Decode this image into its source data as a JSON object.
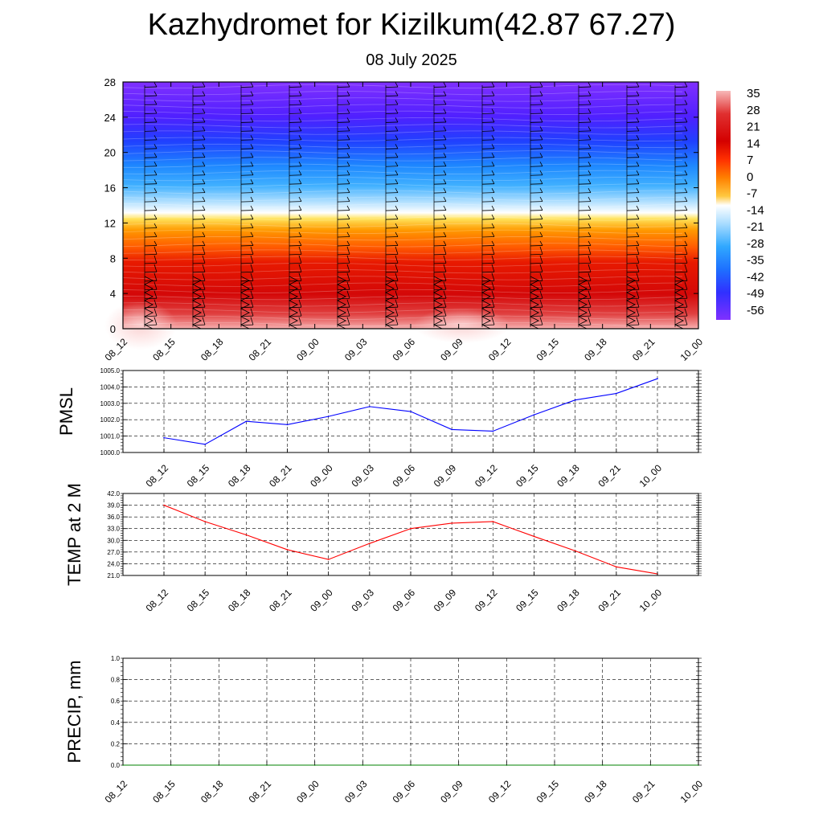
{
  "title": "Kazhydromet for Kizilkum(42.87 67.27)",
  "subtitle": "08 July 2025",
  "chart_data": [
    {
      "type": "heatmap",
      "x_ticks": [
        "08_12",
        "08_15",
        "08_18",
        "08_21",
        "09_00",
        "09_03",
        "09_06",
        "09_09",
        "09_12",
        "09_15",
        "09_18",
        "09_21",
        "10_00"
      ],
      "y_ticks": [
        0,
        4,
        8,
        12,
        16,
        20,
        24,
        28
      ],
      "ylim": [
        0,
        28
      ],
      "colorbar_labels": [
        "35",
        "28",
        "21",
        "14",
        "7",
        "0",
        "-7",
        "-14",
        "-21",
        "-28",
        "-35",
        "-42",
        "-49",
        "-56"
      ],
      "colorbar_colors": [
        "#f7b8b8",
        "#e83030",
        "#d40000",
        "#e81a00",
        "#ff5000",
        "#ff8000",
        "#ffb400",
        "#ffe060",
        "#ffffff",
        "#bfe6ff",
        "#50b8ff",
        "#1e8cff",
        "#2050ff",
        "#3030ff",
        "#6020ff",
        "#8030ff"
      ],
      "colormap_note": "temperature by height and time; ~12 km transition from warm to cold; wind barbs overlaid",
      "height_profile": [
        {
          "h": 0,
          "v": 35
        },
        {
          "h": 2,
          "v": 33
        },
        {
          "h": 4,
          "v": 30
        },
        {
          "h": 8,
          "v": 20
        },
        {
          "h": 12,
          "v": -8
        },
        {
          "h": 13,
          "v": -20
        },
        {
          "h": 16,
          "v": -35
        },
        {
          "h": 20,
          "v": -48
        },
        {
          "h": 24,
          "v": -55
        },
        {
          "h": 28,
          "v": -60
        }
      ]
    },
    {
      "type": "line",
      "ylabel": "PMSL",
      "x": [
        "08_12",
        "08_15",
        "08_18",
        "08_21",
        "09_00",
        "09_03",
        "09_06",
        "09_09",
        "09_12",
        "09_15",
        "09_18",
        "09_21",
        "10_00"
      ],
      "values": [
        1000.9,
        1000.5,
        1001.9,
        1001.7,
        1002.2,
        1002.8,
        1002.5,
        1001.4,
        1001.3,
        1002.3,
        1003.2,
        1003.6,
        1004.5
      ],
      "ylim": [
        1000.0,
        1005.0
      ],
      "y_ticks": [
        "1000.0",
        "1001.0",
        "1002.0",
        "1003.0",
        "1004.0",
        "1005.0"
      ],
      "color": "#0000ff",
      "grid": true
    },
    {
      "type": "line",
      "ylabel": "TEMP at 2 M",
      "x": [
        "08_12",
        "08_15",
        "08_18",
        "08_21",
        "09_00",
        "09_03",
        "09_06",
        "09_09",
        "09_12",
        "09_15",
        "09_18",
        "09_21",
        "10_00"
      ],
      "values": [
        39.0,
        34.8,
        31.4,
        27.6,
        25.1,
        29.2,
        33.0,
        34.4,
        34.8,
        31.0,
        27.3,
        23.2,
        21.4
      ],
      "ylim": [
        21.0,
        42.0
      ],
      "y_ticks": [
        "21.0",
        "24.0",
        "27.0",
        "30.0",
        "33.0",
        "36.0",
        "39.0",
        "42.0"
      ],
      "color": "#ff0000",
      "grid": true
    },
    {
      "type": "line",
      "ylabel": "PRECIP, mm",
      "x": [
        "08_12",
        "08_15",
        "08_18",
        "08_21",
        "09_00",
        "09_03",
        "09_06",
        "09_09",
        "09_12",
        "09_15",
        "09_18",
        "09_21",
        "10_00"
      ],
      "values": [
        0,
        0,
        0,
        0,
        0,
        0,
        0,
        0,
        0,
        0,
        0,
        0,
        0
      ],
      "ylim": [
        0.0,
        1.0
      ],
      "y_ticks": [
        "0.0",
        "0.2",
        "0.4",
        "0.6",
        "0.8",
        "1.0"
      ],
      "color": "#008000",
      "grid": true
    }
  ]
}
